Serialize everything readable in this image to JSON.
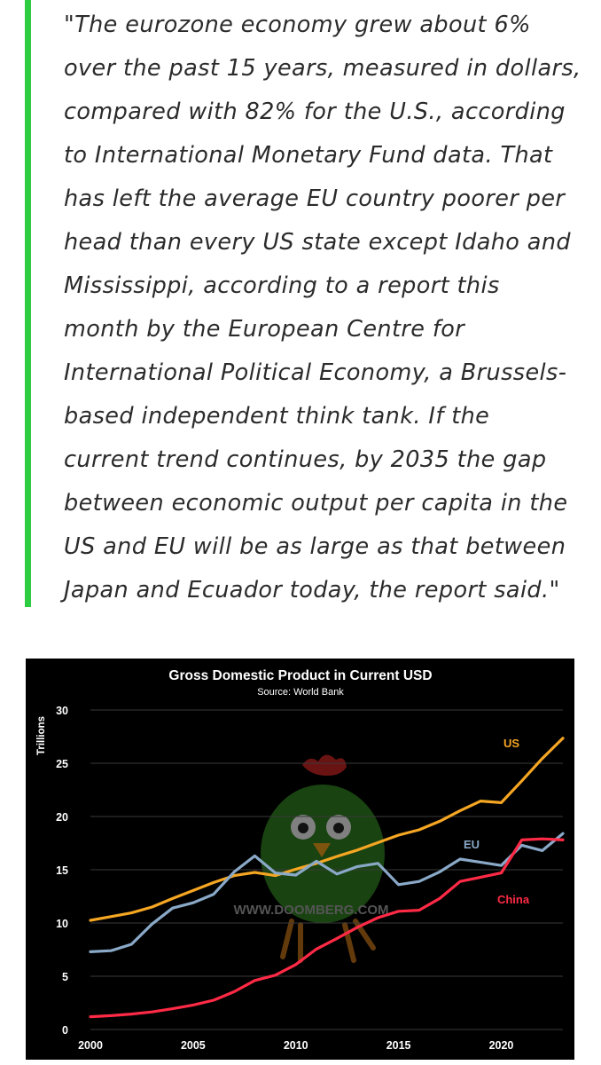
{
  "quote": {
    "accent_color": "#2ecc40",
    "lines": [
      "\"The eurozone economy grew about 6%",
      "over the past 15 years, measured in dollars,",
      "compared with 82% for the U.S., according",
      "to International Monetary Fund data. That",
      "has left the average EU country poorer per",
      "head than every US state except Idaho and",
      "Mississippi, according to a report this",
      "month by the European Centre for",
      "International Political Economy, a Brussels-",
      "based independent think tank. If the",
      "current trend continues, by 2035 the gap",
      "between economic output per capita in the",
      "US and EU will be as large as that between",
      "Japan and Ecuador today, the report said.\""
    ]
  },
  "chart_data": {
    "type": "line",
    "title": "Gross Domestic Product in Current USD",
    "subtitle": "Source: World Bank",
    "ylabel": "Trillions",
    "xlabel": "",
    "watermark": "WWW.DOOMBERG.COM",
    "ylim": [
      0,
      30
    ],
    "xlim": [
      2000,
      2023
    ],
    "yticks": [
      0,
      5,
      10,
      15,
      20,
      25,
      30
    ],
    "xticks": [
      2000,
      2005,
      2010,
      2015,
      2020
    ],
    "grid": true,
    "background": "#000000",
    "x": [
      2000,
      2001,
      2002,
      2003,
      2004,
      2005,
      2006,
      2007,
      2008,
      2009,
      2010,
      2011,
      2012,
      2013,
      2014,
      2015,
      2016,
      2017,
      2018,
      2019,
      2020,
      2021,
      2022,
      2023
    ],
    "series": [
      {
        "name": "US",
        "color": "#f5a623",
        "values": [
          10.25,
          10.6,
          10.95,
          11.5,
          12.3,
          13.05,
          13.8,
          14.45,
          14.75,
          14.45,
          15.05,
          15.6,
          16.25,
          16.85,
          17.55,
          18.25,
          18.75,
          19.55,
          20.55,
          21.45,
          21.3,
          23.35,
          25.45,
          27.35
        ]
      },
      {
        "name": "EU",
        "color": "#8aa9c8",
        "values": [
          7.3,
          7.4,
          8.0,
          9.9,
          11.4,
          11.9,
          12.7,
          14.8,
          16.3,
          14.7,
          14.5,
          15.8,
          14.6,
          15.3,
          15.6,
          13.6,
          13.9,
          14.8,
          16.0,
          15.7,
          15.4,
          17.3,
          16.8,
          18.4
        ]
      },
      {
        "name": "China",
        "color": "#ff2a45",
        "values": [
          1.2,
          1.3,
          1.45,
          1.65,
          1.95,
          2.3,
          2.75,
          3.55,
          4.6,
          5.1,
          6.1,
          7.55,
          8.55,
          9.6,
          10.5,
          11.1,
          11.2,
          12.3,
          13.9,
          14.3,
          14.7,
          17.8,
          17.9,
          17.8
        ]
      }
    ]
  }
}
